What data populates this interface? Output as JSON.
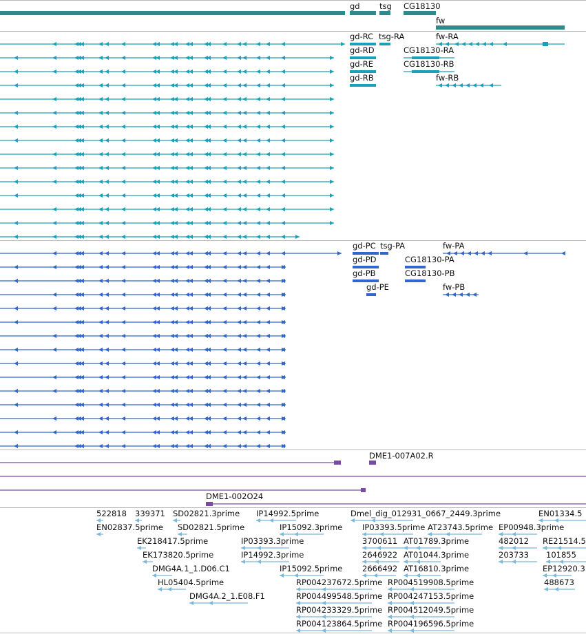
{
  "colors": {
    "gene": "#2e8b8b",
    "transcript": "#1aa0b8",
    "protein": "#3366cc",
    "clone": "#7a4aa0",
    "est": "#7ab8dc",
    "separator": "#b9b9b9"
  },
  "genes": {
    "labels": [
      "gd",
      "tsg",
      "CG18130",
      "fw"
    ]
  },
  "transcripts": {
    "labels": [
      "gd-RC",
      "tsg-RA",
      "fw-RA",
      "gd-RD",
      "CG18130-RA",
      "gd-RE",
      "CG18130-RB",
      "gd-RB",
      "fw-RB"
    ]
  },
  "proteins": {
    "labels": [
      "gd-PC",
      "tsg-PA",
      "fw-PA",
      "gd-PD",
      "CG18130-PA",
      "gd-PB",
      "CG18130-PB",
      "gd-PE",
      "fw-PB"
    ]
  },
  "clones": {
    "labels": [
      "DME1-007A02.R",
      "DME1-002O24"
    ]
  },
  "ests": {
    "labels": [
      "522818",
      "339371",
      "SD02821.3prime",
      "IP14992.5prime",
      "Dmel_dig_012931_0667_2449.3prime",
      "EN01334.5",
      "EN02837.5prime",
      "SD02821.5prime",
      "IP15092.3prime",
      "IP03393.5prime",
      "AT23743.5prime",
      "EP00948.3prime",
      "EK218417.5prime",
      "IP03393.3prime",
      "3700611",
      "AT01789.3prime",
      "482012",
      "RE21514.5",
      "EK173820.5prime",
      "IP14992.3prime",
      "2646922",
      "AT01044.3prime",
      "203733",
      "101855",
      "DMG4A.1_1.D06.C1",
      "IP15092.5prime",
      "2666492",
      "AT16810.3prime",
      "EP12920.3",
      "HL05404.5prime",
      "RP004237672.5prime",
      "RP004519908.5prime",
      "488673",
      "DMG4A.2_1.E08.F1",
      "RP004499548.5prime",
      "RP004247153.5prime",
      "RP004233329.5prime",
      "RP004512049.5prime",
      "RP004123864.5prime",
      "RP004196596.5prime"
    ]
  }
}
